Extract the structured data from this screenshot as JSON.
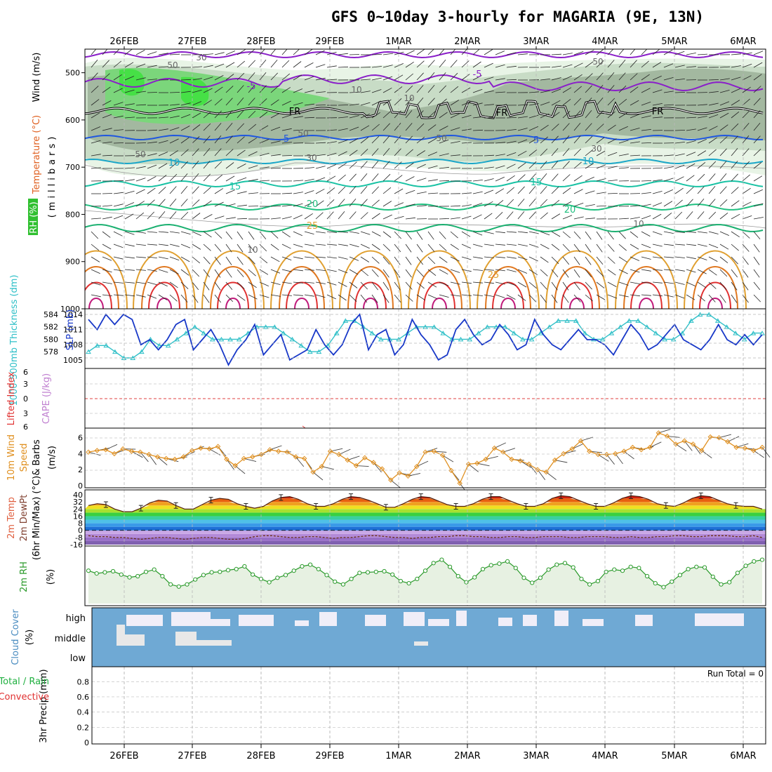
{
  "title": "GFS 0~10day 3-hourly for MAGARIA (9E, 13N)",
  "dates": [
    "26FEB",
    "27FEB",
    "28FEB",
    "29FEB",
    "1MAR",
    "2MAR",
    "3MAR",
    "4MAR",
    "5MAR",
    "6MAR"
  ],
  "colors": {
    "temp_iso_cold": "#8a1fc9",
    "temp_iso_blue": "#1f57e0",
    "temp_iso_cyan": "#1aa6c8",
    "temp_iso_teal": "#19c2a4",
    "temp_iso_green": "#20c080",
    "temp_iso_orange": "#e0a030",
    "slp": "#1838c8",
    "thickness": "#30c0c8",
    "wind10": "#e09020",
    "rh2m": "#2a9a2a",
    "cloud": "#6fa9d4"
  },
  "chart_data": [
    {
      "type": "heatmap",
      "panel": "upper-air",
      "ylabel_lines": [
        "Wind (m/s)",
        "Temperature (°C)",
        "RH (%)",
        "(millibars)"
      ],
      "yticks": [
        500,
        600,
        700,
        800,
        900,
        1000
      ],
      "ylim": [
        1000,
        450
      ],
      "isotherm_labels": [
        "-5",
        "-5",
        "FR",
        "FR",
        "FR",
        "-5",
        "-5",
        "10",
        "10",
        "15",
        "15",
        "20",
        "20",
        "25",
        "25"
      ],
      "rh_labels": [
        "30",
        "50",
        "50",
        "50",
        "30",
        "10",
        "10",
        "50",
        "30",
        "10",
        "10",
        "10"
      ]
    },
    {
      "type": "line",
      "panel": "thickness-slp",
      "ylabel_left": "1000-500mb Thickness (dm)",
      "ylabel_right": "SLP (mb)",
      "yticks_left": [
        578,
        580,
        582,
        584
      ],
      "yticks_right": [
        1005,
        1008,
        1011,
        1014
      ],
      "series": [
        {
          "name": "SLP (mb)",
          "values": [
            1013,
            1011,
            1014,
            1012,
            1014,
            1013,
            1008,
            1009,
            1007,
            1009,
            1012,
            1013,
            1007,
            1009,
            1011,
            1008,
            1004,
            1007,
            1009,
            1012,
            1006,
            1008,
            1010,
            1005,
            1006,
            1007,
            1011,
            1008,
            1006,
            1008,
            1012,
            1014,
            1007,
            1010,
            1011,
            1006,
            1008,
            1013,
            1010,
            1008,
            1005,
            1006,
            1011,
            1013,
            1010,
            1008,
            1009,
            1012,
            1010,
            1007,
            1008,
            1013,
            1010,
            1008,
            1007,
            1009,
            1011,
            1009,
            1009,
            1008,
            1006,
            1009,
            1012,
            1010,
            1007,
            1008,
            1010,
            1012,
            1009,
            1008,
            1007,
            1009,
            1012,
            1009,
            1008,
            1010,
            1008,
            1010
          ]
        },
        {
          "name": "1000-500mb Thickness (dm)",
          "values": [
            578,
            579,
            579,
            578,
            577,
            577,
            578,
            580,
            579,
            579,
            580,
            581,
            582,
            581,
            580,
            580,
            580,
            580,
            581,
            582,
            582,
            582,
            581,
            580,
            579,
            578,
            578,
            579,
            581,
            583,
            583,
            582,
            581,
            580,
            580,
            580,
            581,
            582,
            582,
            582,
            581,
            580,
            580,
            580,
            581,
            582,
            582,
            582,
            581,
            580,
            580,
            581,
            582,
            583,
            583,
            583,
            581,
            580,
            580,
            581,
            582,
            583,
            583,
            582,
            581,
            580,
            580,
            581,
            583,
            584,
            584,
            583,
            582,
            581,
            580,
            581,
            581
          ]
        }
      ]
    },
    {
      "type": "line",
      "panel": "stability",
      "ylabel": "Lifted Index / CAPE (J/kg)",
      "yticks": [
        6,
        3,
        0,
        -3,
        -6
      ],
      "ylabel_left_a": "Lifted Index",
      "ylabel_left_b": "CAPE (J/kg)"
    },
    {
      "type": "line",
      "panel": "wind10m",
      "ylabel_lines": [
        "10m Wind",
        "Speed",
        "& Barbs",
        "(m/s)"
      ],
      "yticks": [
        0,
        2,
        4,
        6
      ],
      "series": [
        {
          "name": "10m Wind Speed",
          "values": [
            4.2,
            4.4,
            4.5,
            4.0,
            4.6,
            4.3,
            4.2,
            3.9,
            3.6,
            3.4,
            3.3,
            3.6,
            4.4,
            4.7,
            4.6,
            4.9,
            3.3,
            2.5,
            3.4,
            3.6,
            3.9,
            4.5,
            4.3,
            4.2,
            3.6,
            3.4,
            1.7,
            2.4,
            4.3,
            3.9,
            3.2,
            2.5,
            3.5,
            2.9,
            2.1,
            0.7,
            1.6,
            1.2,
            2.4,
            4.2,
            4.3,
            3.8,
            1.9,
            0.3,
            2.7,
            2.8,
            3.3,
            4.7,
            4.2,
            3.3,
            3.1,
            2.7,
            2.0,
            1.7,
            3.2,
            4.0,
            4.6,
            5.6,
            4.3,
            3.9,
            3.9,
            4.0,
            4.3,
            4.8,
            4.5,
            4.8,
            6.6,
            6.2,
            5.2,
            5.6,
            5.2,
            4.4,
            6.1,
            6.0,
            5.5,
            4.8,
            4.7,
            4.4,
            4.8
          ]
        }
      ]
    },
    {
      "type": "area",
      "panel": "temperature2m",
      "ylabel_lines": [
        "2m Temp",
        "2m DewPt",
        "(6hr Min/Max) (°C)"
      ],
      "yticks": [
        40,
        32,
        24,
        16,
        8,
        0,
        -8,
        -16
      ],
      "series": [
        {
          "name": "2m Temp",
          "values": [
            28,
            30,
            29,
            24,
            21,
            21,
            25,
            31,
            34,
            33,
            28,
            24,
            24,
            29,
            34,
            36,
            35,
            30,
            27,
            25,
            27,
            33,
            37,
            38,
            35,
            30,
            27,
            27,
            30,
            35,
            38,
            37,
            34,
            30,
            26,
            26,
            30,
            35,
            38,
            37,
            33,
            29,
            27,
            27,
            30,
            35,
            38,
            38,
            34,
            30,
            27,
            27,
            30,
            36,
            39,
            38,
            34,
            30,
            27,
            27,
            31,
            36,
            39,
            38,
            35,
            30,
            28,
            27,
            31,
            36,
            39,
            38,
            34,
            30,
            28,
            27,
            27,
            24
          ]
        },
        {
          "name": "2m DewPt",
          "values": [
            -6,
            -7,
            -7,
            -8,
            -8,
            -9,
            -10,
            -9,
            -8,
            -8,
            -9,
            -10,
            -9,
            -8,
            -8,
            -9,
            -10,
            -10,
            -9,
            -7,
            -6,
            -6,
            -7,
            -8,
            -8,
            -7,
            -7,
            -8,
            -9,
            -8,
            -8,
            -7,
            -6,
            -6,
            -7,
            -8,
            -8,
            -9,
            -8,
            -8,
            -7,
            -7,
            -6,
            -6,
            -7,
            -7,
            -8,
            -8,
            -7,
            -7,
            -8,
            -8,
            -7,
            -7,
            -7,
            -8,
            -8,
            -7,
            -7,
            -7,
            -8,
            -8,
            -7,
            -8,
            -8,
            -7,
            -7,
            -6,
            -6,
            -7,
            -7,
            -6,
            -6,
            -6,
            -7,
            -7,
            -6,
            -8
          ]
        }
      ]
    },
    {
      "type": "line",
      "panel": "rh2m",
      "ylabel": "2m RH",
      "yunit": "(%)",
      "series": [
        {
          "name": "2m RH",
          "values": [
            60,
            55,
            57,
            59,
            53,
            48,
            50,
            58,
            62,
            50,
            35,
            31,
            35,
            44,
            52,
            57,
            58,
            61,
            63,
            68,
            53,
            45,
            39,
            47,
            52,
            60,
            68,
            71,
            63,
            52,
            40,
            35,
            45,
            56,
            57,
            58,
            59,
            53,
            41,
            37,
            45,
            60,
            74,
            80,
            67,
            50,
            39,
            48,
            63,
            70,
            73,
            77,
            65,
            47,
            38,
            47,
            62,
            71,
            74,
            66,
            45,
            35,
            41,
            58,
            62,
            60,
            67,
            65,
            50,
            37,
            30,
            40,
            52,
            63,
            67,
            66,
            49,
            35,
            39,
            56,
            69,
            77,
            80
          ]
        }
      ]
    },
    {
      "type": "bar",
      "panel": "cloud-cover",
      "ylabel": "Cloud Cover",
      "yunit": "(%)",
      "levels": [
        "high",
        "middle",
        "low"
      ]
    },
    {
      "type": "bar",
      "panel": "precip",
      "ylabel": "3hr Precip (mm)",
      "legend_a": "Total / Rain",
      "legend_b": "Convective",
      "yticks": [
        0,
        0.2,
        0.4,
        0.6,
        0.8
      ],
      "run_total": "Run Total = 0",
      "values": []
    }
  ]
}
